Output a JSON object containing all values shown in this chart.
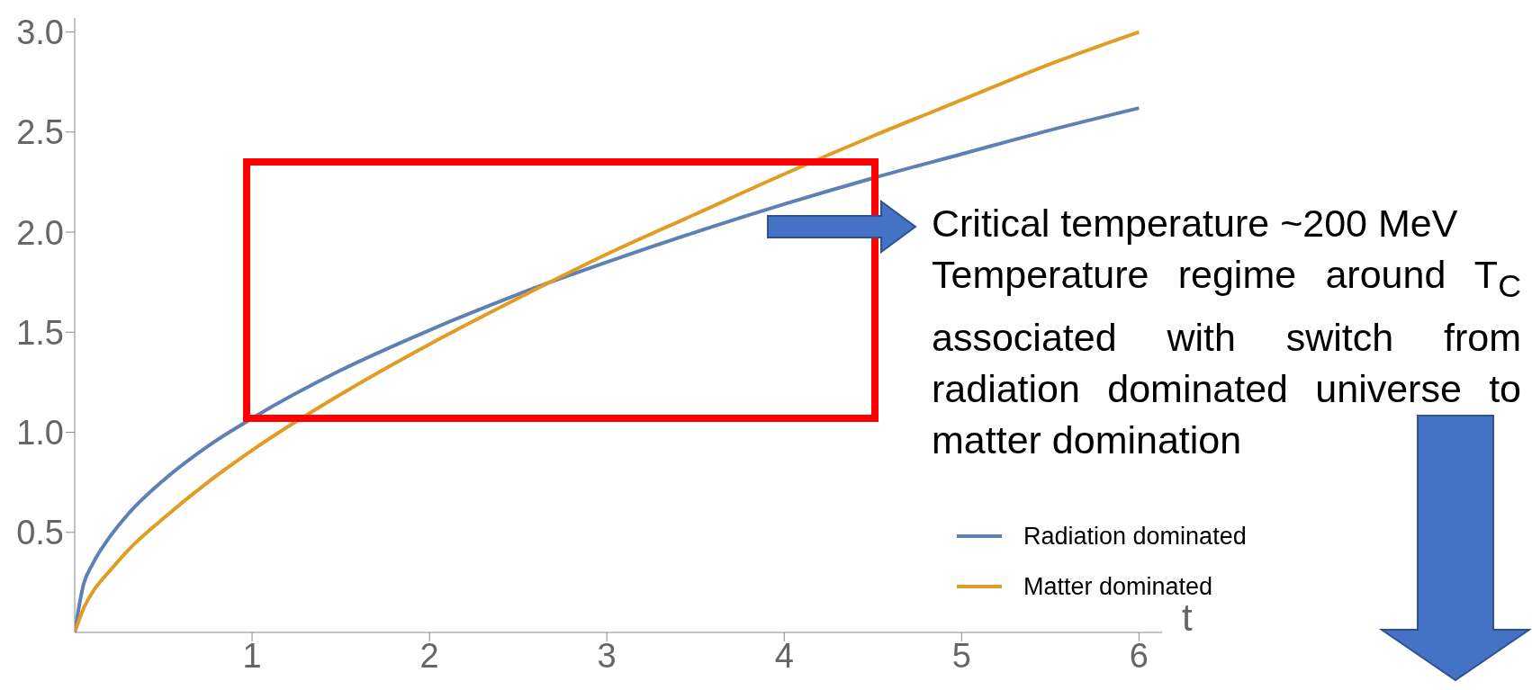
{
  "chart_data": {
    "type": "line",
    "xlabel": "t",
    "x": [
      0,
      0.05,
      0.1,
      0.2,
      0.3,
      0.5,
      0.75,
      1,
      1.5,
      2,
      2.5,
      3,
      3.5,
      4,
      4.5,
      5,
      5.5,
      6
    ],
    "series": [
      {
        "name": "Radiation dominated",
        "color": "#5e81b5",
        "values": [
          0,
          0.24,
          0.34,
          0.48,
          0.59,
          0.76,
          0.93,
          1.07,
          1.31,
          1.51,
          1.69,
          1.85,
          2.0,
          2.14,
          2.27,
          2.39,
          2.51,
          2.62
        ]
      },
      {
        "name": "Matter dominated",
        "color": "#e19c24",
        "values": [
          0,
          0.12,
          0.2,
          0.31,
          0.41,
          0.57,
          0.75,
          0.91,
          1.19,
          1.44,
          1.67,
          1.89,
          2.09,
          2.29,
          2.48,
          2.66,
          2.84,
          3.0
        ]
      }
    ],
    "xlim": [
      0,
      6.13
    ],
    "xticks": [
      1,
      2,
      3,
      4,
      5,
      6
    ],
    "ylim": [
      0,
      3.07
    ],
    "yticks": [
      {
        "value": 0.5,
        "label": "0.5"
      },
      {
        "value": 1,
        "label": "1.0"
      },
      {
        "value": 1.5,
        "label": "1.5"
      },
      {
        "value": 2,
        "label": "2.0"
      },
      {
        "value": 2.5,
        "label": "2.5"
      },
      {
        "value": 3,
        "label": "3.0"
      }
    ],
    "legend": "bottom right",
    "line_style": "solid",
    "annotations": [
      "Critical temperature ~200 MeV",
      "Temperature regime around T$_{C}$ associated with switch from radiation dominated universe to matter domination"
    ]
  }
}
